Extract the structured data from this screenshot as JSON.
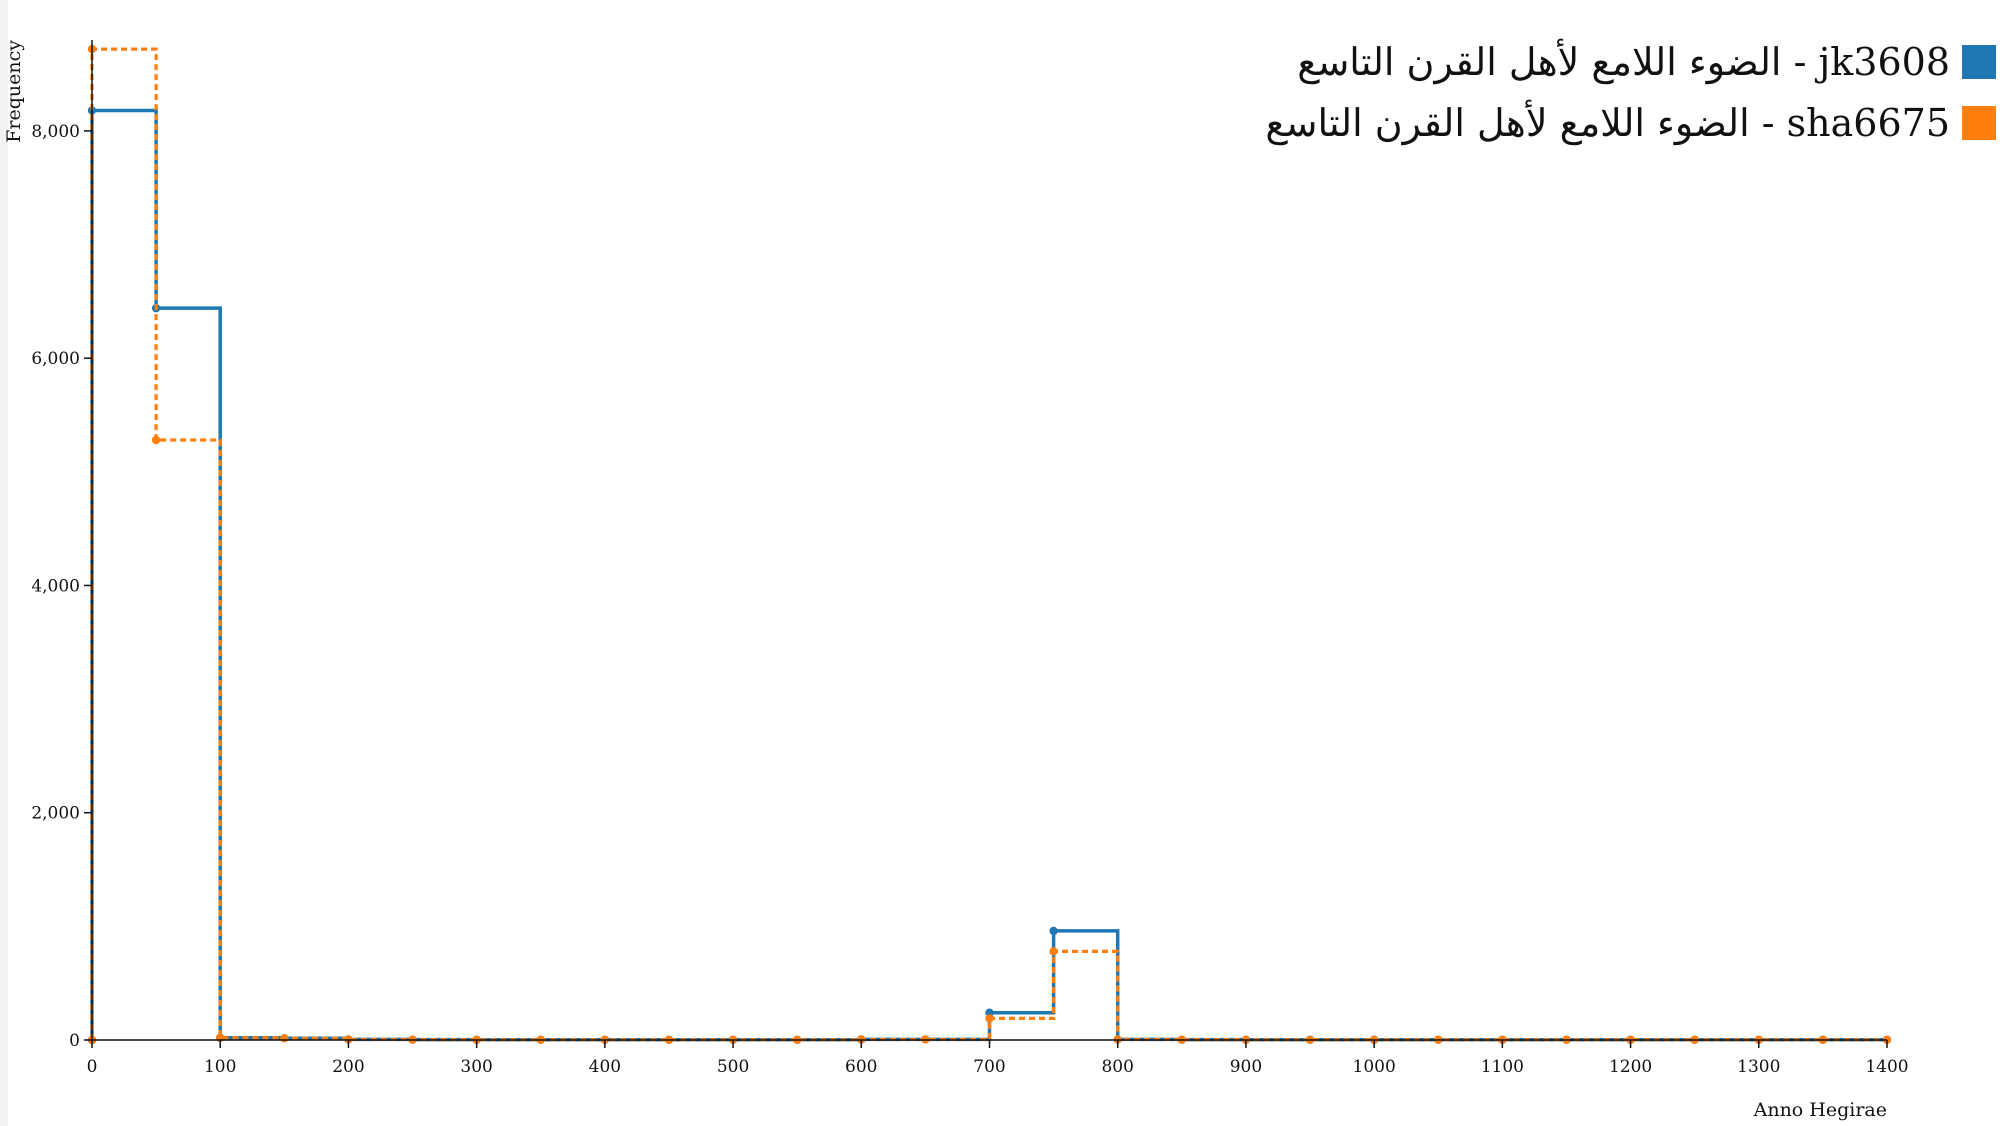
{
  "chart_data": {
    "type": "line",
    "step": "histogram",
    "xlabel": "Anno Hegirae",
    "ylabel": "Frequency",
    "xlim": [
      0,
      1400
    ],
    "ylim": [
      0,
      8800
    ],
    "x_ticks": [
      "0",
      "100",
      "200",
      "300",
      "400",
      "500",
      "600",
      "700",
      "800",
      "900",
      "1000",
      "1100",
      "1200",
      "1300",
      "1400"
    ],
    "y_ticks": [
      "0",
      "2,000",
      "4,000",
      "6,000",
      "8,000"
    ],
    "legend_position": "top-right",
    "x": [
      0,
      50,
      100,
      150,
      200,
      250,
      300,
      350,
      400,
      450,
      500,
      550,
      600,
      650,
      700,
      750,
      800,
      850,
      900,
      950,
      1000,
      1050,
      1100,
      1150,
      1200,
      1250,
      1300,
      1350,
      1400
    ],
    "series": [
      {
        "name": "الضوء اللامع لأهل القرن التاسع - jk3608",
        "color": "#1f77b4",
        "dash": "solid",
        "values": [
          8180,
          6440,
          20,
          15,
          5,
          3,
          2,
          2,
          2,
          2,
          2,
          2,
          5,
          5,
          240,
          960,
          5,
          3,
          2,
          2,
          2,
          2,
          2,
          2,
          2,
          2,
          2,
          2,
          2
        ]
      },
      {
        "name": "الضوء اللامع لأهل القرن التاسع - sha6675",
        "color": "#ff7f0e",
        "dash": "dotted",
        "values": [
          8720,
          5280,
          20,
          15,
          5,
          3,
          2,
          2,
          2,
          2,
          2,
          2,
          5,
          5,
          190,
          780,
          5,
          3,
          2,
          2,
          2,
          2,
          2,
          2,
          2,
          2,
          2,
          2,
          2
        ]
      }
    ]
  }
}
